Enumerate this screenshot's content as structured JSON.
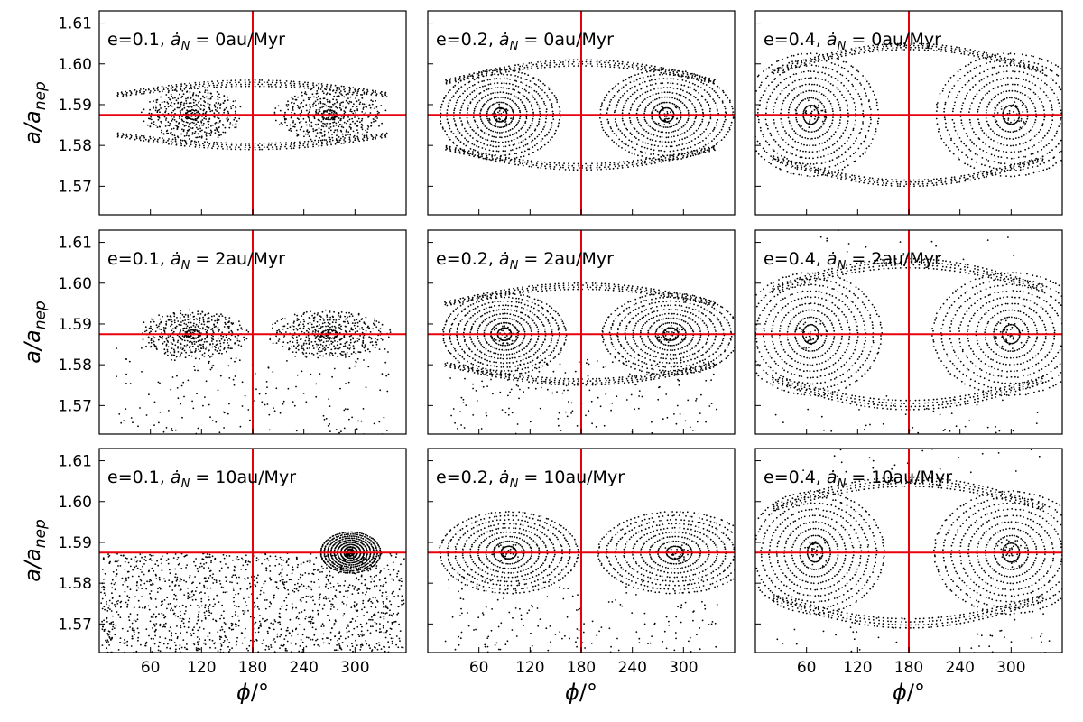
{
  "chart_data": {
    "type": "scatter",
    "layout": "3x3 grid",
    "xlabel": "φ/°",
    "ylabel": "a/a_nep",
    "xlim": [
      0,
      360
    ],
    "ylim": [
      1.563,
      1.613
    ],
    "xticks": [
      60,
      120,
      180,
      240,
      300
    ],
    "yticks": [
      1.57,
      1.58,
      1.59,
      1.6,
      1.61
    ],
    "grid": false,
    "reference_lines": {
      "color": "#e8000b",
      "x": 180,
      "y": 1.5875
    },
    "point_color": "#000000",
    "panels": [
      {
        "row": 0,
        "col": 0,
        "e": "0.1",
        "adot": "0",
        "label_prefix": "e=0.1, ",
        "label_rate": " = 0au/Myr",
        "centers": [
          110,
          270
        ],
        "inner_rx": 60,
        "da_max": 0.006,
        "outer_da": 0.008,
        "libration": false,
        "migration_trail": "none"
      },
      {
        "row": 0,
        "col": 1,
        "e": "0.2",
        "adot": "0",
        "label_prefix": "e=0.2, ",
        "label_rate": " = 0au/Myr",
        "centers": [
          85,
          280
        ],
        "inner_rx": 78,
        "da_max": 0.011,
        "outer_da": 0.013,
        "libration": true,
        "migration_trail": "none"
      },
      {
        "row": 0,
        "col": 2,
        "e": "0.4",
        "adot": "0",
        "label_prefix": "e=0.4, ",
        "label_rate": " = 0au/Myr",
        "centers": [
          65,
          300
        ],
        "inner_rx": 88,
        "da_max": 0.015,
        "outer_da": 0.017,
        "libration": true,
        "migration_trail": "none"
      },
      {
        "row": 1,
        "col": 0,
        "e": "0.1",
        "adot": "2",
        "label_prefix": "e=0.1, ",
        "label_rate": " = 2au/Myr",
        "centers": [
          110,
          270
        ],
        "inner_rx": 65,
        "da_max": 0.0055,
        "outer_da": 0.0,
        "libration": false,
        "migration_trail": "below"
      },
      {
        "row": 1,
        "col": 1,
        "e": "0.2",
        "adot": "2",
        "label_prefix": "e=0.2, ",
        "label_rate": " = 2au/Myr",
        "centers": [
          90,
          285
        ],
        "inner_rx": 80,
        "da_max": 0.01,
        "outer_da": 0.012,
        "libration": true,
        "migration_trail": "below"
      },
      {
        "row": 1,
        "col": 2,
        "e": "0.4",
        "adot": "2",
        "label_prefix": "e=0.4, ",
        "label_rate": " = 2au/Myr",
        "centers": [
          65,
          300
        ],
        "inner_rx": 92,
        "da_max": 0.015,
        "outer_da": 0.018,
        "libration": true,
        "migration_trail": "sparse"
      },
      {
        "row": 2,
        "col": 0,
        "e": "0.1",
        "adot": "10",
        "label_prefix": "e=0.1, ",
        "label_rate": " = 10au/Myr",
        "centers": [
          295
        ],
        "inner_rx": 35,
        "da_max": 0.005,
        "outer_da": 0.0,
        "libration": true,
        "migration_trail": "field"
      },
      {
        "row": 2,
        "col": 1,
        "e": "0.2",
        "adot": "10",
        "label_prefix": "e=0.2, ",
        "label_rate": " = 10au/Myr",
        "centers": [
          95,
          290
        ],
        "inner_rx": 90,
        "da_max": 0.01,
        "outer_da": 0.0,
        "libration": true,
        "migration_trail": "below"
      },
      {
        "row": 2,
        "col": 2,
        "e": "0.4",
        "adot": "10",
        "label_prefix": "e=0.4, ",
        "label_rate": " = 10au/Myr",
        "centers": [
          70,
          300
        ],
        "inner_rx": 90,
        "da_max": 0.015,
        "outer_da": 0.018,
        "libration": true,
        "migration_trail": "sparse"
      }
    ]
  },
  "labels": {
    "adot_symbol": "ȧ",
    "adot_sub": "N",
    "xlabel_main": "ϕ",
    "xlabel_unit": "/°",
    "ylabel_main": "a/a",
    "ylabel_sub": "nep"
  }
}
